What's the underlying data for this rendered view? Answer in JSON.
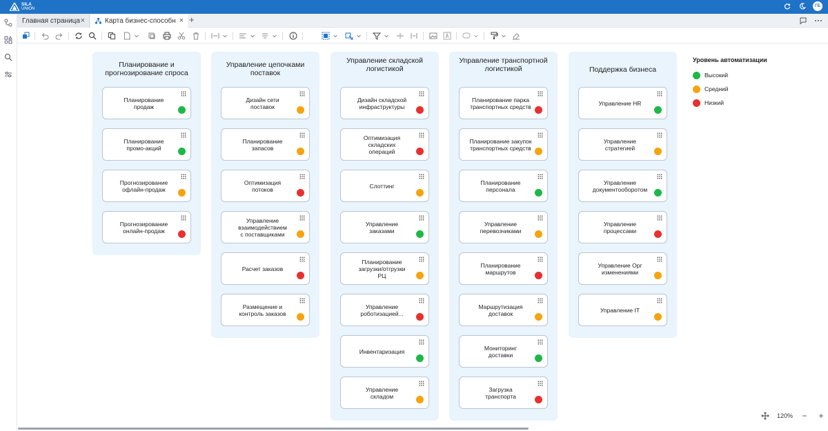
{
  "brand": {
    "name": "SILA",
    "sub": "UNION"
  },
  "header": {
    "avatar": "ГБ"
  },
  "tabs": [
    {
      "label": "Главная страница"
    },
    {
      "label": "Карта бизнес-способн"
    }
  ],
  "zoom": {
    "level": "120%"
  },
  "legend": {
    "title": "Уровень автоматизации",
    "items": [
      {
        "label": "Высокий",
        "color": "#1db847"
      },
      {
        "label": "Средний",
        "color": "#f5a40f"
      },
      {
        "label": "Низкий",
        "color": "#e8302f"
      }
    ]
  },
  "colors": {
    "green": "#1db847",
    "orange": "#f5a40f",
    "red": "#e8302f",
    "accent": "#1f73c7"
  },
  "columns": [
    {
      "title": "Планирование и\nпрогнозирование спроса",
      "cards": [
        {
          "label": "Планирование\nпродаж",
          "level": "green"
        },
        {
          "label": "Планирование\nпромо-акций",
          "level": "green"
        },
        {
          "label": "Прогнозирование\nофлайн-продаж",
          "level": "orange"
        },
        {
          "label": "Прогнозирование\nонлайн-продаж",
          "level": "red"
        }
      ]
    },
    {
      "title": "Управление цепочками\nпоставок",
      "cards": [
        {
          "label": "Дизайн сети\nпоставок",
          "level": "orange"
        },
        {
          "label": "Планирование\nзапасов",
          "level": "orange"
        },
        {
          "label": "Оптимизация\nпотоков",
          "level": "red"
        },
        {
          "label": "Управление\nвзаимодействием\nс поставщиками",
          "level": "orange"
        },
        {
          "label": "Расчет заказов",
          "level": "red"
        },
        {
          "label": "Размещение и\nконтроль заказов",
          "level": "orange"
        }
      ]
    },
    {
      "title": "Управление складской\nлогистикой",
      "cards": [
        {
          "label": "Дизайн складской\nинфраструктуры",
          "level": "red"
        },
        {
          "label": "Оптимизация\nскладских\nопераций",
          "level": "red"
        },
        {
          "label": "Слоттинг",
          "level": "orange"
        },
        {
          "label": "Управление\nзаказами",
          "level": "green"
        },
        {
          "label": "Планирование\nзагрузки/отгрузки\nРЦ",
          "level": "orange"
        },
        {
          "label": "Управление\nроботизацией...",
          "level": "red"
        },
        {
          "label": "Инвентаризация",
          "level": "green"
        },
        {
          "label": "Управление\nскладом",
          "level": "orange"
        }
      ]
    },
    {
      "title": "Управление транспортной\nлогистикой",
      "cards": [
        {
          "label": "Планирование парка\nтранспортных средств",
          "level": "red"
        },
        {
          "label": "Планирование закупок\nтранспортных средств",
          "level": "orange"
        },
        {
          "label": "Планирование\nперсонала",
          "level": "green"
        },
        {
          "label": "Управление\nперевозчиками",
          "level": "orange"
        },
        {
          "label": "Планирование\nмаршрутов",
          "level": "red"
        },
        {
          "label": "Маршрутизация\nдоставок",
          "level": "orange"
        },
        {
          "label": "Мониторинг\nдоставки",
          "level": "green"
        },
        {
          "label": "Загрузка\nтранспорта",
          "level": "red"
        }
      ]
    },
    {
      "title": "Поддержка бизнеса",
      "cards": [
        {
          "label": "Управление HR",
          "level": "green"
        },
        {
          "label": "Управление\nстратегией",
          "level": "orange"
        },
        {
          "label": "Управление\nдокументооборотом",
          "level": "green"
        },
        {
          "label": "Управление\nпроцессами",
          "level": "red"
        },
        {
          "label": "Управление Орг\nизменениями",
          "level": "orange"
        },
        {
          "label": "Управление IT",
          "level": "orange"
        }
      ]
    }
  ]
}
